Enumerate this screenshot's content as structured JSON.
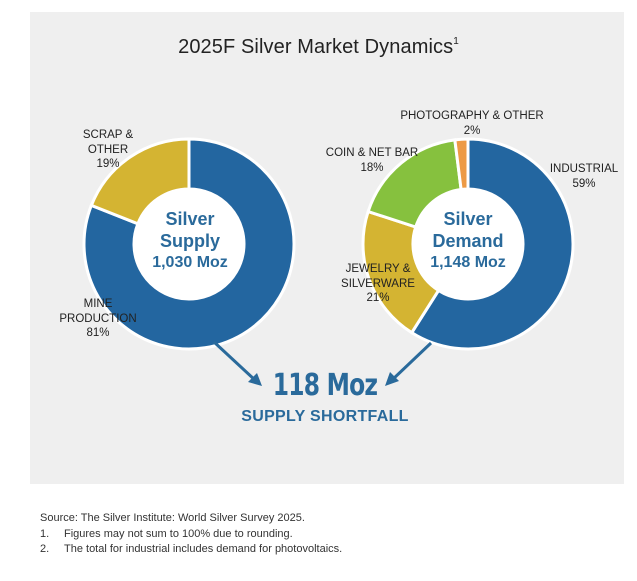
{
  "title": "2025F Silver Market Dynamics",
  "title_superscript": "1",
  "colors": {
    "mine_production": "#2366a0",
    "industrial": "#2366a0",
    "scrap_other": "#d4b432",
    "jewelry": "#d4b432",
    "coin_bar": "#86c13e",
    "photography": "#ed9a45",
    "accent_text": "#2a6a9b",
    "panel": "#efefef"
  },
  "chart_data": [
    {
      "type": "pie",
      "variant": "donut",
      "name": "supply",
      "center_label": [
        "Silver",
        "Supply",
        "1,030 Moz"
      ],
      "slices": [
        {
          "label": "MINE PRODUCTION",
          "value": 81,
          "display": "81%"
        },
        {
          "label": "SCRAP & OTHER",
          "value": 19,
          "display": "19%"
        }
      ]
    },
    {
      "type": "pie",
      "variant": "donut",
      "name": "demand",
      "center_label": [
        "Silver",
        "Demand",
        "1,148 Moz"
      ],
      "slices": [
        {
          "label": "INDUSTRIAL",
          "value": 59,
          "display": "59%"
        },
        {
          "label": "JEWELRY & SILVERWARE",
          "value": 21,
          "display": "21%"
        },
        {
          "label": "COIN & NET BAR",
          "value": 18,
          "display": "18%"
        },
        {
          "label": "PHOTOGRAPHY & OTHER",
          "value": 2,
          "display": "2%"
        }
      ]
    }
  ],
  "labels": {
    "scrap": [
      "SCRAP &",
      "OTHER",
      "19%"
    ],
    "mine": [
      "MINE",
      "PRODUCTION",
      "81%"
    ],
    "photo": [
      "PHOTOGRAPHY & OTHER",
      "2%"
    ],
    "coin": [
      "COIN & NET BAR",
      "18%"
    ],
    "industrial": [
      "INDUSTRIAL",
      "59%"
    ],
    "jewelry": [
      "JEWELRY &",
      "SILVERWARE",
      "21%"
    ]
  },
  "shortfall": {
    "value": "118 Moz",
    "label": "SUPPLY SHORTFALL"
  },
  "footnotes": {
    "source": "Source: The Silver Institute: World Silver Survey 2025.",
    "notes": [
      {
        "num": "1.",
        "text": "Figures may not sum to 100% due to rounding."
      },
      {
        "num": "2.",
        "text": "The total for industrial includes demand for photovoltaics."
      }
    ]
  }
}
